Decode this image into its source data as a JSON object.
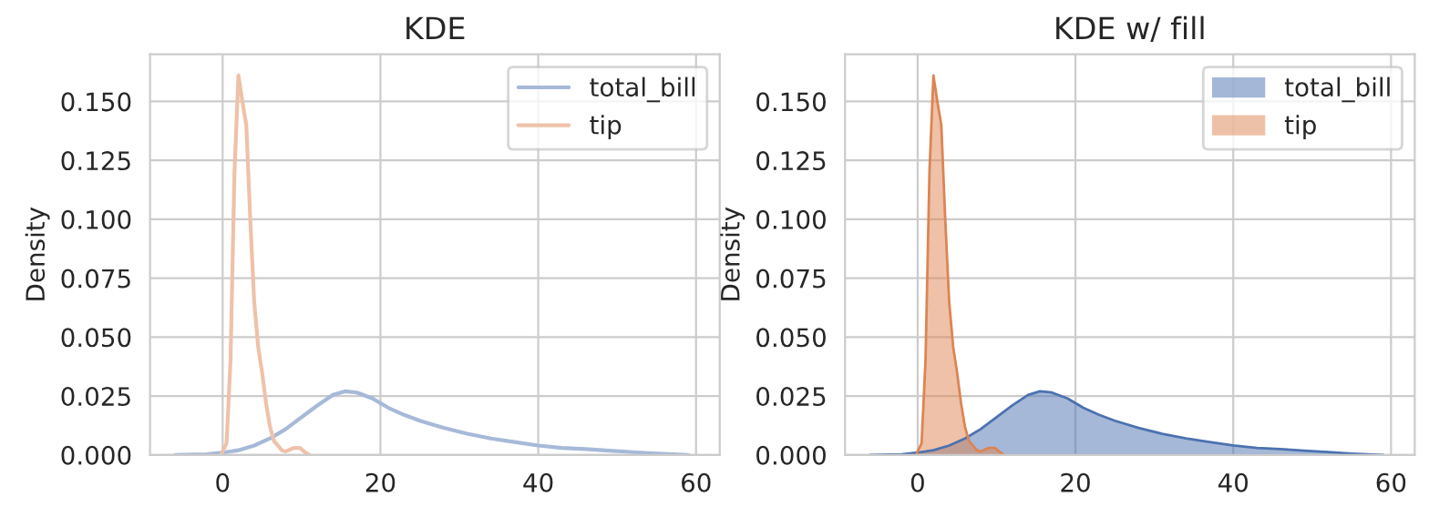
{
  "chart_data": [
    {
      "type": "line",
      "title": "KDE",
      "ylabel": "Density",
      "xlim": [
        -9.2,
        63
      ],
      "ylim": [
        0,
        0.17
      ],
      "xticks": [
        0,
        20,
        40,
        60
      ],
      "yticks": [
        {
          "value": 0,
          "label": "0.000"
        },
        {
          "value": 0.025,
          "label": "0.025"
        },
        {
          "value": 0.05,
          "label": "0.050"
        },
        {
          "value": 0.075,
          "label": "0.075"
        },
        {
          "value": 0.1,
          "label": "0.100"
        },
        {
          "value": 0.125,
          "label": "0.125"
        },
        {
          "value": 0.15,
          "label": "0.150"
        }
      ],
      "grid": true,
      "legend": "top right",
      "series": [
        {
          "name": "total_bill",
          "color": "#a6b9d8",
          "x": [
            -6,
            -2,
            0,
            2,
            4,
            6,
            8,
            10,
            12,
            14,
            15.5,
            17,
            19,
            21,
            23,
            25,
            28,
            31,
            34,
            37,
            40,
            43,
            46,
            49,
            52,
            55,
            59
          ],
          "values": [
            0,
            0.0003,
            0.001,
            0.002,
            0.004,
            0.007,
            0.011,
            0.016,
            0.021,
            0.0255,
            0.027,
            0.0265,
            0.024,
            0.02,
            0.017,
            0.0145,
            0.0115,
            0.009,
            0.007,
            0.0055,
            0.004,
            0.003,
            0.0025,
            0.0018,
            0.0012,
            0.0006,
            0
          ]
        },
        {
          "name": "tip",
          "color": "#eec2a9",
          "x": [
            -0.2,
            0.5,
            1,
            1.5,
            2,
            2.5,
            3,
            3.5,
            4,
            4.5,
            5,
            5.5,
            6,
            6.5,
            7,
            7.5,
            8,
            9,
            9.8,
            10.5,
            11
          ],
          "values": [
            0,
            0.005,
            0.04,
            0.12,
            0.161,
            0.15,
            0.14,
            0.1,
            0.065,
            0.046,
            0.035,
            0.022,
            0.012,
            0.006,
            0.004,
            0.002,
            0.0015,
            0.003,
            0.003,
            0.001,
            0
          ]
        }
      ]
    },
    {
      "type": "area",
      "title": "KDE w/ fill",
      "ylabel": "Density",
      "xlim": [
        -9.2,
        63
      ],
      "ylim": [
        0,
        0.17
      ],
      "xticks": [
        0,
        20,
        40,
        60
      ],
      "yticks": [
        {
          "value": 0,
          "label": "0.000"
        },
        {
          "value": 0.025,
          "label": "0.025"
        },
        {
          "value": 0.05,
          "label": "0.050"
        },
        {
          "value": 0.075,
          "label": "0.075"
        },
        {
          "value": 0.1,
          "label": "0.100"
        },
        {
          "value": 0.125,
          "label": "0.125"
        },
        {
          "value": 0.15,
          "label": "0.150"
        }
      ],
      "grid": true,
      "legend": "top right",
      "series": [
        {
          "name": "total_bill",
          "color": "#4c72b0",
          "x": [
            -6,
            -2,
            0,
            2,
            4,
            6,
            8,
            10,
            12,
            14,
            15.5,
            17,
            19,
            21,
            23,
            25,
            28,
            31,
            34,
            37,
            40,
            43,
            46,
            49,
            52,
            55,
            59
          ],
          "values": [
            0,
            0.0003,
            0.001,
            0.002,
            0.004,
            0.007,
            0.011,
            0.016,
            0.021,
            0.0255,
            0.027,
            0.0265,
            0.024,
            0.02,
            0.017,
            0.0145,
            0.0115,
            0.009,
            0.007,
            0.0055,
            0.004,
            0.003,
            0.0025,
            0.0018,
            0.0012,
            0.0006,
            0
          ]
        },
        {
          "name": "tip",
          "color": "#dd8452",
          "x": [
            -0.2,
            0.5,
            1,
            1.5,
            2,
            2.5,
            3,
            3.5,
            4,
            4.5,
            5,
            5.5,
            6,
            6.5,
            7,
            7.5,
            8,
            9,
            9.8,
            10.5,
            11
          ],
          "values": [
            0,
            0.005,
            0.04,
            0.12,
            0.161,
            0.15,
            0.14,
            0.1,
            0.065,
            0.046,
            0.035,
            0.022,
            0.012,
            0.006,
            0.004,
            0.002,
            0.0015,
            0.003,
            0.003,
            0.001,
            0
          ]
        }
      ]
    }
  ]
}
